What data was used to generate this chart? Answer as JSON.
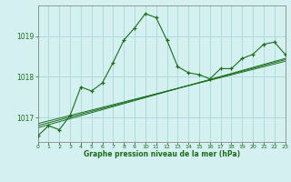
{
  "title": "Graphe pression niveau de la mer (hPa)",
  "bg_color": "#d4f0f0",
  "grid_color": "#a8d8d8",
  "line_color": "#1a6e1a",
  "xmin": 0,
  "xmax": 23,
  "ymin": 1016.4,
  "ymax": 1019.75,
  "yticks": [
    1017,
    1018,
    1019
  ],
  "series1_x": [
    0,
    1,
    2,
    3,
    4,
    5,
    6,
    7,
    8,
    9,
    10,
    11,
    12,
    13,
    14,
    15,
    16,
    17,
    18,
    19,
    20,
    21,
    22,
    23
  ],
  "series1_y": [
    1016.55,
    1016.8,
    1016.7,
    1017.05,
    1017.75,
    1017.65,
    1017.85,
    1018.35,
    1018.9,
    1019.2,
    1019.55,
    1019.45,
    1018.9,
    1018.25,
    1018.1,
    1018.05,
    1017.95,
    1018.2,
    1018.2,
    1018.45,
    1018.55,
    1018.8,
    1018.85,
    1018.55
  ],
  "series2_x": [
    0,
    23
  ],
  "series2_y": [
    1016.75,
    1018.45
  ],
  "series3_x": [
    0,
    23
  ],
  "series3_y": [
    1016.8,
    1018.42
  ],
  "series4_x": [
    0,
    23
  ],
  "series4_y": [
    1016.85,
    1018.38
  ]
}
